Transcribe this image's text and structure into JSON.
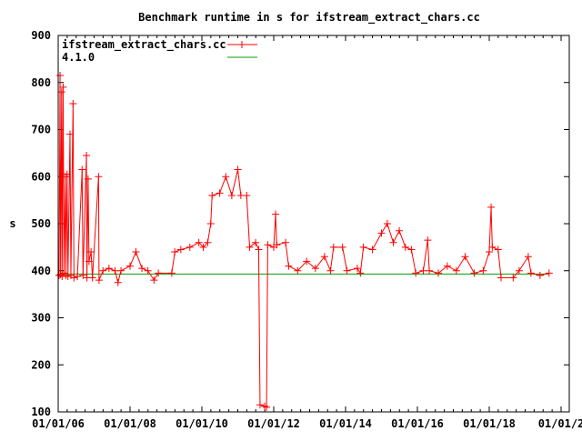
{
  "chart_data": {
    "type": "line",
    "title": "Benchmark runtime in s for ifstream_extract_chars.cc",
    "xlabel": "",
    "ylabel": "s",
    "xlim": [
      "2006-01-01",
      "2020-03-01"
    ],
    "ylim": [
      100,
      900
    ],
    "yticks": [
      100,
      200,
      300,
      400,
      500,
      600,
      700,
      800,
      900
    ],
    "xtick_labels": [
      "01/01/06",
      "01/01/08",
      "01/01/10",
      "01/01/12",
      "01/01/14",
      "01/01/16",
      "01/01/18",
      "01/01/2"
    ],
    "xtick_dates": [
      "2006-01-01",
      "2008-01-01",
      "2010-01-01",
      "2012-01-01",
      "2014-01-01",
      "2016-01-01",
      "2018-01-01",
      "2020-01-01"
    ],
    "grid": false,
    "legend_placement": "top-left",
    "series": [
      {
        "name": "ifstream_extract_chars.cc",
        "color": "#ff0000",
        "marker": "plus",
        "points": [
          [
            "2006-01-10",
            390
          ],
          [
            "2006-01-20",
            815
          ],
          [
            "2006-01-25",
            392
          ],
          [
            "2006-02-05",
            780
          ],
          [
            "2006-02-10",
            388
          ],
          [
            "2006-02-20",
            790
          ],
          [
            "2006-03-01",
            395
          ],
          [
            "2006-03-15",
            600
          ],
          [
            "2006-03-20",
            390
          ],
          [
            "2006-04-01",
            605
          ],
          [
            "2006-04-10",
            388
          ],
          [
            "2006-05-01",
            690
          ],
          [
            "2006-05-10",
            390
          ],
          [
            "2006-06-01",
            755
          ],
          [
            "2006-06-10",
            385
          ],
          [
            "2006-07-15",
            388
          ],
          [
            "2006-09-01",
            615
          ],
          [
            "2006-09-10",
            390
          ],
          [
            "2006-10-15",
            645
          ],
          [
            "2006-10-20",
            385
          ],
          [
            "2006-11-01",
            595
          ],
          [
            "2006-11-10",
            420
          ],
          [
            "2006-12-01",
            440
          ],
          [
            "2006-12-15",
            385
          ],
          [
            "2007-02-15",
            600
          ],
          [
            "2007-02-20",
            380
          ],
          [
            "2007-04-01",
            400
          ],
          [
            "2007-06-01",
            405
          ],
          [
            "2007-08-01",
            400
          ],
          [
            "2007-09-01",
            375
          ],
          [
            "2007-10-01",
            400
          ],
          [
            "2008-01-01",
            410
          ],
          [
            "2008-03-01",
            440
          ],
          [
            "2008-05-01",
            405
          ],
          [
            "2008-07-01",
            400
          ],
          [
            "2008-09-01",
            380
          ],
          [
            "2008-10-15",
            395
          ],
          [
            "2009-03-01",
            395
          ],
          [
            "2009-04-01",
            440
          ],
          [
            "2009-06-01",
            445
          ],
          [
            "2009-09-01",
            450
          ],
          [
            "2009-12-01",
            460
          ],
          [
            "2010-01-15",
            450
          ],
          [
            "2010-03-01",
            460
          ],
          [
            "2010-04-01",
            500
          ],
          [
            "2010-04-15",
            560
          ],
          [
            "2010-07-01",
            565
          ],
          [
            "2010-09-01",
            600
          ],
          [
            "2010-11-01",
            560
          ],
          [
            "2011-01-01",
            615
          ],
          [
            "2011-02-01",
            560
          ],
          [
            "2011-04-01",
            560
          ],
          [
            "2011-05-01",
            450
          ],
          [
            "2011-07-01",
            460
          ],
          [
            "2011-08-01",
            445
          ],
          [
            "2011-08-15",
            115
          ],
          [
            "2011-10-01",
            112
          ],
          [
            "2011-10-20",
            110
          ],
          [
            "2011-11-01",
            455
          ],
          [
            "2012-01-01",
            450
          ],
          [
            "2012-01-20",
            520
          ],
          [
            "2012-02-01",
            455
          ],
          [
            "2012-05-01",
            460
          ],
          [
            "2012-06-01",
            410
          ],
          [
            "2012-09-01",
            400
          ],
          [
            "2012-12-01",
            420
          ],
          [
            "2013-03-01",
            405
          ],
          [
            "2013-06-01",
            430
          ],
          [
            "2013-08-01",
            400
          ],
          [
            "2013-09-01",
            450
          ],
          [
            "2013-12-01",
            450
          ],
          [
            "2014-01-15",
            400
          ],
          [
            "2014-05-01",
            405
          ],
          [
            "2014-06-01",
            395
          ],
          [
            "2014-07-01",
            450
          ],
          [
            "2014-10-01",
            445
          ],
          [
            "2015-01-01",
            480
          ],
          [
            "2015-03-01",
            500
          ],
          [
            "2015-05-01",
            460
          ],
          [
            "2015-07-01",
            485
          ],
          [
            "2015-09-01",
            450
          ],
          [
            "2015-11-01",
            445
          ],
          [
            "2015-12-15",
            395
          ],
          [
            "2016-03-01",
            400
          ],
          [
            "2016-04-15",
            465
          ],
          [
            "2016-05-01",
            400
          ],
          [
            "2016-08-01",
            395
          ],
          [
            "2016-11-01",
            410
          ],
          [
            "2017-02-01",
            400
          ],
          [
            "2017-05-01",
            430
          ],
          [
            "2017-08-01",
            395
          ],
          [
            "2017-11-01",
            400
          ],
          [
            "2018-01-01",
            440
          ],
          [
            "2018-01-20",
            535
          ],
          [
            "2018-02-01",
            450
          ],
          [
            "2018-04-01",
            445
          ],
          [
            "2018-05-01",
            385
          ],
          [
            "2018-09-01",
            385
          ],
          [
            "2018-11-01",
            400
          ],
          [
            "2019-02-01",
            430
          ],
          [
            "2019-03-01",
            395
          ],
          [
            "2019-06-01",
            390
          ],
          [
            "2019-09-01",
            395
          ]
        ]
      },
      {
        "name": "4.1.0",
        "color": "#00a000",
        "marker": "none",
        "constant": 393,
        "range": [
          "2006-01-01",
          "2019-09-01"
        ]
      }
    ]
  }
}
